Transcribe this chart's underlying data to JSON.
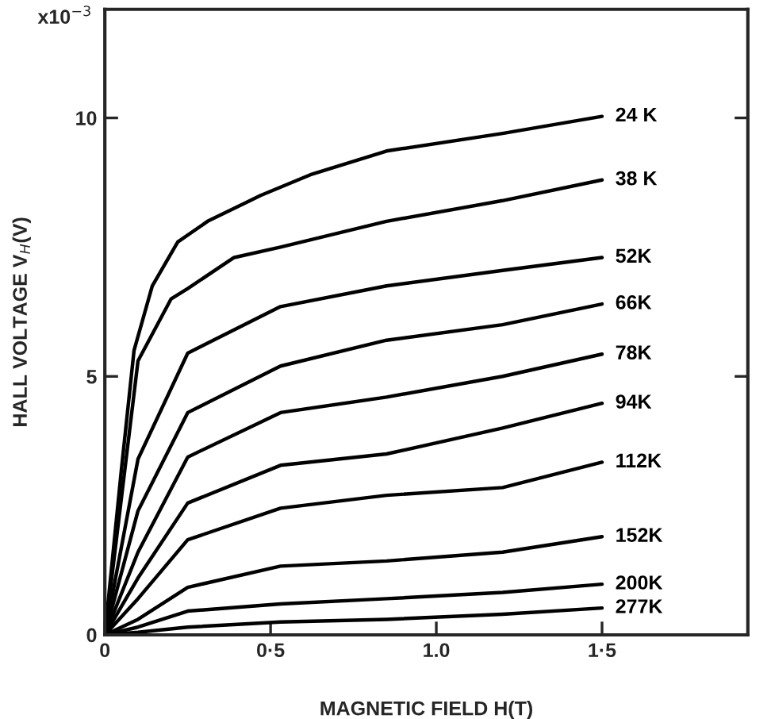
{
  "chart_data": {
    "type": "line",
    "xlabel": "MAGNETIC FIELD H(T)",
    "ylabel": "HALL VOLTAGE V$_{H}$(V)",
    "annotations": [
      "x10$^{−3}$"
    ],
    "xlim": [
      0,
      1.94
    ],
    "ylim": [
      0,
      12.1
    ],
    "xticks": [
      {
        "value": 0,
        "label": "0"
      },
      {
        "value": 0.5,
        "label": "0·5"
      },
      {
        "value": 1.0,
        "label": "1.0"
      },
      {
        "value": 1.5,
        "label": "1·5"
      }
    ],
    "yticks": [
      0,
      5,
      10
    ],
    "grid": false,
    "legend": false,
    "marker": "none",
    "line_style": "solid",
    "series": [
      {
        "name": "24 K",
        "color": "#000000",
        "x": [
          0,
          0.05,
          0.088,
          0.143,
          0.22,
          0.31,
          0.47,
          0.62,
          0.85,
          1.2,
          1.5
        ],
        "values": [
          0,
          3.2,
          5.5,
          6.75,
          7.6,
          8.0,
          8.5,
          8.9,
          9.36,
          9.7,
          10.03
        ]
      },
      {
        "name": "38 K",
        "color": "#000000",
        "x": [
          0,
          0.1,
          0.2,
          0.25,
          0.39,
          0.53,
          0.85,
          1.2,
          1.5
        ],
        "values": [
          0,
          5.3,
          6.5,
          6.7,
          7.3,
          7.5,
          8.0,
          8.4,
          8.8
        ]
      },
      {
        "name": "52K",
        "color": "#000000",
        "x": [
          0,
          0.1,
          0.25,
          0.53,
          0.85,
          1.2,
          1.5
        ],
        "values": [
          0,
          3.4,
          5.45,
          6.35,
          6.75,
          7.05,
          7.3
        ]
      },
      {
        "name": "66K",
        "color": "#000000",
        "x": [
          0,
          0.1,
          0.25,
          0.53,
          0.85,
          1.2,
          1.5
        ],
        "values": [
          0,
          2.4,
          4.3,
          5.2,
          5.7,
          6.0,
          6.4
        ]
      },
      {
        "name": "78K",
        "color": "#000000",
        "x": [
          0,
          0.1,
          0.25,
          0.53,
          0.85,
          1.2,
          1.5
        ],
        "values": [
          0,
          1.6,
          3.44,
          4.3,
          4.6,
          5.0,
          5.43
        ]
      },
      {
        "name": "94K",
        "color": "#000000",
        "x": [
          0,
          0.1,
          0.25,
          0.53,
          0.85,
          1.2,
          1.5
        ],
        "values": [
          0,
          1.1,
          2.55,
          3.28,
          3.5,
          4.0,
          4.48
        ]
      },
      {
        "name": "112K",
        "color": "#000000",
        "x": [
          0,
          0.1,
          0.25,
          0.53,
          0.85,
          1.2,
          1.5
        ],
        "values": [
          0,
          0.7,
          1.84,
          2.45,
          2.7,
          2.85,
          3.34
        ]
      },
      {
        "name": "152K",
        "color": "#000000",
        "x": [
          0,
          0.1,
          0.25,
          0.53,
          0.85,
          1.2,
          1.5
        ],
        "values": [
          0,
          0.3,
          0.92,
          1.33,
          1.43,
          1.6,
          1.9
        ]
      },
      {
        "name": "200K",
        "color": "#000000",
        "x": [
          0,
          0.1,
          0.25,
          0.53,
          0.85,
          1.2,
          1.5
        ],
        "values": [
          0,
          0.15,
          0.46,
          0.6,
          0.7,
          0.82,
          0.98
        ]
      },
      {
        "name": "277K",
        "color": "#000000",
        "x": [
          0,
          0.1,
          0.25,
          0.53,
          0.85,
          1.2,
          1.5
        ],
        "values": [
          0,
          0.05,
          0.15,
          0.25,
          0.3,
          0.4,
          0.52
        ]
      }
    ]
  }
}
